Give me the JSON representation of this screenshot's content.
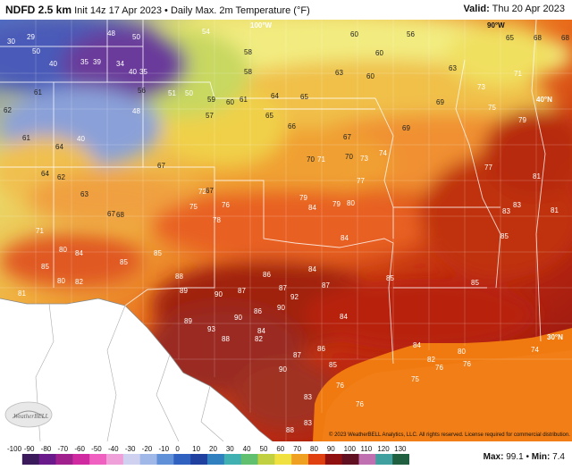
{
  "header": {
    "model": "NDFD 2.5 km",
    "init": "Init 14z 17 Apr 2023",
    "separator": "•",
    "field": "Daily Max. 2m Temperature (°F)",
    "valid_label": "Valid:",
    "valid_time": "Thu 20 Apr 2023"
  },
  "map": {
    "longitude_labels": [
      "100°W",
      "90°W",
      "40°N",
      "30°N"
    ],
    "copyright": "© 2023 WeatherBELL Analytics, LLC. All rights reserved. License required for commercial distribution.",
    "logo": "WeatherBELL",
    "values": [
      {
        "v": "50"
      },
      {
        "v": "30"
      },
      {
        "v": "29"
      },
      {
        "v": "48"
      },
      {
        "v": "50"
      },
      {
        "v": "54"
      },
      {
        "v": "60"
      },
      {
        "v": "56"
      },
      {
        "v": "60"
      },
      {
        "v": "65"
      },
      {
        "v": "68"
      },
      {
        "v": "68"
      },
      {
        "v": "40"
      },
      {
        "v": "35"
      },
      {
        "v": "39"
      },
      {
        "v": "34"
      },
      {
        "v": "40"
      },
      {
        "v": "35"
      },
      {
        "v": "58"
      },
      {
        "v": "58"
      },
      {
        "v": "63"
      },
      {
        "v": "60"
      },
      {
        "v": "63"
      },
      {
        "v": "71"
      },
      {
        "v": "61"
      },
      {
        "v": "62"
      },
      {
        "v": "56"
      },
      {
        "v": "51"
      },
      {
        "v": "50"
      },
      {
        "v": "59"
      },
      {
        "v": "60"
      },
      {
        "v": "61"
      },
      {
        "v": "64"
      },
      {
        "v": "65"
      },
      {
        "v": "69"
      },
      {
        "v": "73"
      },
      {
        "v": "61"
      },
      {
        "v": "40"
      },
      {
        "v": "48"
      },
      {
        "v": "57"
      },
      {
        "v": "65"
      },
      {
        "v": "66"
      },
      {
        "v": "67"
      },
      {
        "v": "69"
      },
      {
        "v": "70"
      },
      {
        "v": "74"
      },
      {
        "v": "75"
      },
      {
        "v": "79"
      },
      {
        "v": "64"
      },
      {
        "v": "62"
      },
      {
        "v": "63"
      },
      {
        "v": "67"
      },
      {
        "v": "70"
      },
      {
        "v": "71"
      },
      {
        "v": "73"
      },
      {
        "v": "77"
      },
      {
        "v": "81"
      },
      {
        "v": "64"
      },
      {
        "v": "67"
      },
      {
        "v": "72"
      },
      {
        "v": "76"
      },
      {
        "v": "77"
      },
      {
        "v": "79"
      },
      {
        "v": "80"
      },
      {
        "v": "83"
      },
      {
        "v": "85"
      },
      {
        "v": "67"
      },
      {
        "v": "68"
      },
      {
        "v": "75"
      },
      {
        "v": "78"
      },
      {
        "v": "79"
      },
      {
        "v": "84"
      },
      {
        "v": "84"
      },
      {
        "v": "83"
      },
      {
        "v": "71"
      },
      {
        "v": "80"
      },
      {
        "v": "84"
      },
      {
        "v": "85"
      },
      {
        "v": "86"
      },
      {
        "v": "84"
      },
      {
        "v": "81"
      },
      {
        "v": "85"
      },
      {
        "v": "80"
      },
      {
        "v": "82"
      },
      {
        "v": "85"
      },
      {
        "v": "88"
      },
      {
        "v": "90"
      },
      {
        "v": "87"
      },
      {
        "v": "87"
      },
      {
        "v": "87"
      },
      {
        "v": "85"
      },
      {
        "v": "81"
      },
      {
        "v": "89"
      },
      {
        "v": "92"
      },
      {
        "v": "89"
      },
      {
        "v": "86"
      },
      {
        "v": "84"
      },
      {
        "v": "85"
      },
      {
        "v": "90"
      },
      {
        "v": "90"
      },
      {
        "v": "88"
      },
      {
        "v": "86"
      },
      {
        "v": "84"
      },
      {
        "v": "82"
      },
      {
        "v": "80"
      },
      {
        "v": "93"
      },
      {
        "v": "84"
      },
      {
        "v": "87"
      },
      {
        "v": "85"
      },
      {
        "v": "75"
      },
      {
        "v": "76"
      },
      {
        "v": "74"
      },
      {
        "v": "82"
      },
      {
        "v": "90"
      },
      {
        "v": "83"
      },
      {
        "v": "76"
      },
      {
        "v": "76"
      },
      {
        "v": "88"
      },
      {
        "v": "83"
      },
      {
        "v": "76"
      }
    ]
  },
  "colorbar": {
    "ticks": [
      "-100",
      "-90",
      "-80",
      "-70",
      "-60",
      "-50",
      "-40",
      "-30",
      "-20",
      "-10",
      "0",
      "10",
      "20",
      "30",
      "40",
      "50",
      "60",
      "70",
      "80",
      "90",
      "100",
      "110",
      "120",
      "130"
    ],
    "colors": [
      "#ffffff",
      "#3a1a5a",
      "#6a1a8a",
      "#a0208e",
      "#d02aa0",
      "#f060c0",
      "#f0a0d8",
      "#d0d0f0",
      "#a0b8e8",
      "#6090d8",
      "#3060c0",
      "#2040a0",
      "#3080c0",
      "#40b0b0",
      "#60c070",
      "#c0d040",
      "#f0e040",
      "#f0a020",
      "#e04010",
      "#901010",
      "#601020",
      "#c070b0",
      "#40a0a0",
      "#206040"
    ]
  },
  "stats": {
    "max_label": "Max:",
    "max_value": "99.1",
    "separator": "•",
    "min_label": "Min:",
    "min_value": "7.4"
  }
}
